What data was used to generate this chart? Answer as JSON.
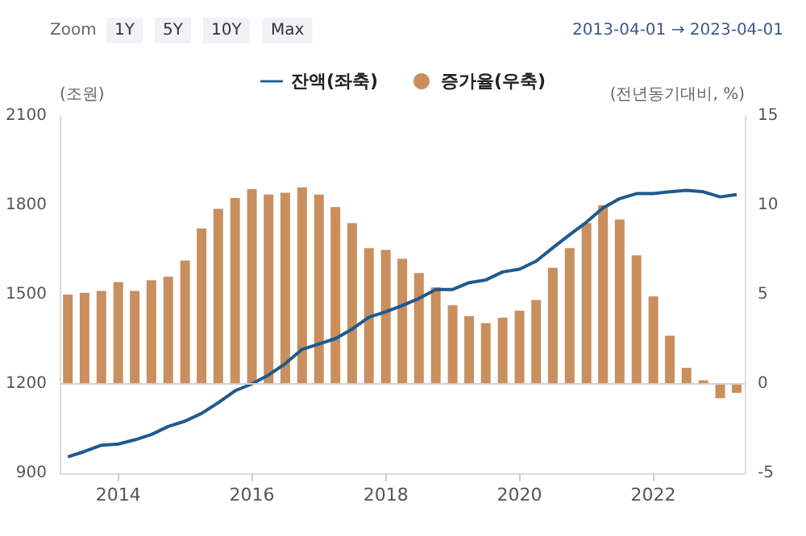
{
  "chart_data": {
    "type": "bar",
    "annotations": [
      "Zoom",
      "1Y",
      "5Y",
      "10Y",
      "Max",
      "2013-04-01 → 2023-04-01"
    ],
    "ylabel": "(조원)",
    "y2label": "(전년동기대비, %)",
    "x": [
      "2013-04",
      "2013-07",
      "2013-10",
      "2014-01",
      "2014-04",
      "2014-07",
      "2014-10",
      "2015-01",
      "2015-04",
      "2015-07",
      "2015-10",
      "2016-01",
      "2016-04",
      "2016-07",
      "2016-10",
      "2017-01",
      "2017-04",
      "2017-07",
      "2017-10",
      "2018-01",
      "2018-04",
      "2018-07",
      "2018-10",
      "2019-01",
      "2019-04",
      "2019-07",
      "2019-10",
      "2020-01",
      "2020-04",
      "2020-07",
      "2020-10",
      "2021-01",
      "2021-04",
      "2021-07",
      "2021-10",
      "2022-01",
      "2022-04",
      "2022-07",
      "2022-10",
      "2023-01",
      "2023-04"
    ],
    "xlim": [
      "2013-02-15",
      "2023-05-15"
    ],
    "xticks": [
      "2014",
      "2016",
      "2018",
      "2020",
      "2022"
    ],
    "ylim": [
      900,
      2100
    ],
    "yticks": [
      900,
      1200,
      1500,
      1800,
      2100
    ],
    "y2lim": [
      -5,
      15
    ],
    "y2ticks": [
      -5,
      0,
      5,
      10,
      15
    ],
    "series": [
      {
        "name": "잔액(좌축)",
        "type": "line",
        "color": "#1f5a8e",
        "values": [
          955,
          973,
          994,
          998,
          1012,
          1030,
          1057,
          1075,
          1101,
          1137,
          1177,
          1200,
          1230,
          1268,
          1316,
          1334,
          1352,
          1384,
          1424,
          1442,
          1463,
          1487,
          1517,
          1517,
          1540,
          1549,
          1576,
          1585,
          1612,
          1657,
          1701,
          1743,
          1791,
          1822,
          1839,
          1839,
          1845,
          1850,
          1845,
          1828,
          1836
        ]
      },
      {
        "name": "증가율(우축)",
        "axis": "y2",
        "color": "#c98f5e",
        "values": [
          5.0,
          5.1,
          5.2,
          5.7,
          5.2,
          5.8,
          6.0,
          6.9,
          8.7,
          9.8,
          10.4,
          10.9,
          10.6,
          10.7,
          11.0,
          10.6,
          9.9,
          9.0,
          7.6,
          7.5,
          7.0,
          6.2,
          5.4,
          4.4,
          3.8,
          3.4,
          3.7,
          4.1,
          4.7,
          6.5,
          7.6,
          9.0,
          10.0,
          9.2,
          7.2,
          4.9,
          2.7,
          0.9,
          0.2,
          -0.8,
          -0.5
        ]
      }
    ],
    "ref_lines": [
      {
        "axis": "y2",
        "value": 0,
        "color": "#d0d0d0"
      }
    ],
    "legend": "top",
    "grid": false,
    "marker": "none"
  }
}
